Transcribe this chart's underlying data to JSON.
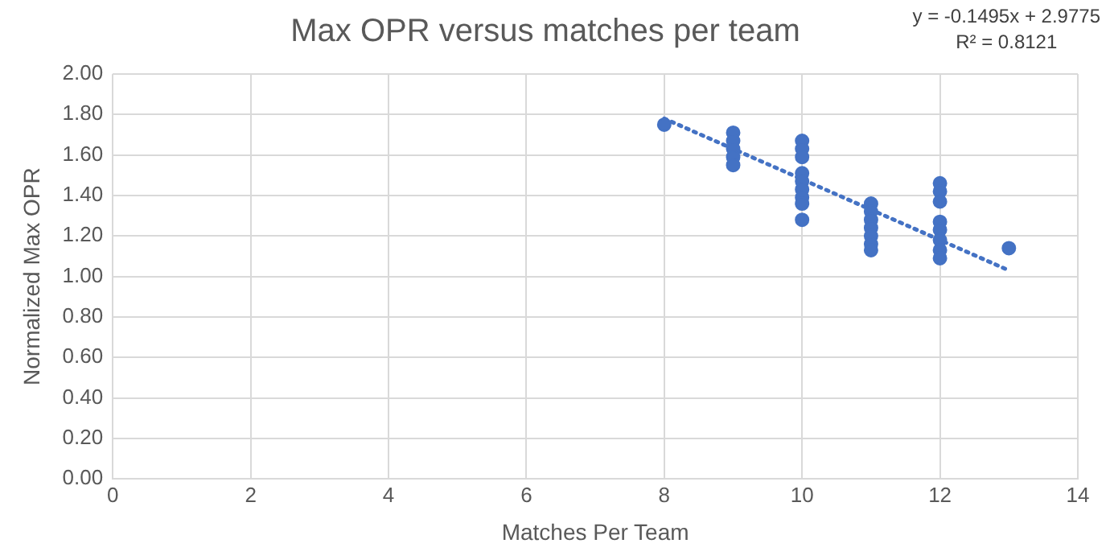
{
  "chart_data": {
    "type": "scatter",
    "title": "Max OPR versus matches per team",
    "xlabel": "Matches Per Team",
    "ylabel": "Normalized Max OPR",
    "annotations": [
      "y = -0.1495x + 2.9775",
      "R² = 0.8121"
    ],
    "series": [
      {
        "color": "#4472c4",
        "marker": "circle",
        "x": [
          8,
          9,
          9,
          9,
          9,
          9,
          10,
          10,
          10,
          10,
          10,
          10,
          10,
          10,
          10,
          11,
          11,
          11,
          11,
          11,
          11,
          11,
          12,
          12,
          12,
          12,
          12,
          12,
          12,
          12,
          13
        ],
        "values": [
          1.75,
          1.71,
          1.67,
          1.63,
          1.59,
          1.55,
          1.67,
          1.63,
          1.59,
          1.51,
          1.47,
          1.43,
          1.39,
          1.36,
          1.28,
          1.36,
          1.32,
          1.28,
          1.24,
          1.2,
          1.16,
          1.13,
          1.46,
          1.42,
          1.37,
          1.27,
          1.23,
          1.18,
          1.13,
          1.09,
          1.14
        ]
      },
      {
        "type": "line",
        "color": "#4472c4",
        "marker": "none",
        "line_style": "dotted",
        "x": [
          8,
          13
        ],
        "values": [
          1.78,
          1.03
        ]
      }
    ],
    "xlim": [
      0,
      14
    ],
    "xticks": [
      0,
      2,
      4,
      6,
      8,
      10,
      12,
      14
    ],
    "ylim": [
      0,
      2
    ],
    "yticks": [
      {
        "value": 0,
        "label": "0.00"
      },
      {
        "value": 0.2,
        "label": "0.20"
      },
      {
        "value": 0.4,
        "label": "0.40"
      },
      {
        "value": 0.6,
        "label": "0.60"
      },
      {
        "value": 0.8,
        "label": "0.80"
      },
      {
        "value": 1,
        "label": "1.00"
      },
      {
        "value": 1.2,
        "label": "1.20"
      },
      {
        "value": 1.4,
        "label": "1.40"
      },
      {
        "value": 1.6,
        "label": "1.60"
      },
      {
        "value": 1.8,
        "label": "1.80"
      },
      {
        "value": 2,
        "label": "2.00"
      }
    ],
    "grid": true,
    "legend": false
  }
}
